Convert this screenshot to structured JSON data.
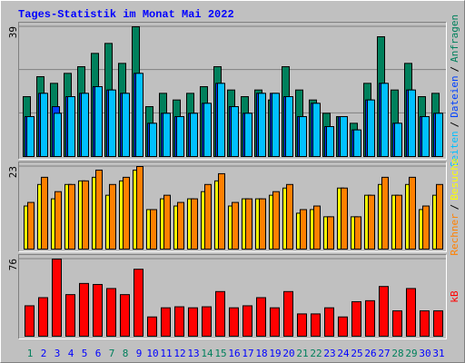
{
  "chart_data": [
    {
      "type": "bar",
      "title": "Tages-Statistik im Monat Mai 2022",
      "ylim": [
        0,
        39
      ],
      "yticks": [
        39
      ],
      "legend_separator": "/",
      "series": [
        {
          "name": "Anfragen",
          "color": "#00805c",
          "values": [
            18,
            24,
            22,
            25,
            27,
            31,
            34,
            28,
            39,
            15,
            19,
            17,
            19,
            21,
            27,
            20,
            18,
            20,
            17,
            27,
            20,
            17,
            13,
            12,
            10,
            22,
            36,
            20,
            28,
            18,
            19
          ]
        },
        {
          "name": "Dateien",
          "color": "#0040ff",
          "values": [
            12,
            19,
            15,
            18,
            19,
            21,
            20,
            19,
            25,
            10,
            13,
            12,
            13,
            16,
            22,
            15,
            13,
            19,
            19,
            18,
            12,
            16,
            9,
            12,
            8,
            17,
            22,
            10,
            20,
            12,
            13
          ]
        },
        {
          "name": "Seiten",
          "color": "#00c0ff",
          "values": [
            12,
            19,
            13,
            18,
            19,
            21,
            20,
            19,
            25,
            10,
            13,
            12,
            13,
            16,
            22,
            15,
            13,
            19,
            19,
            18,
            12,
            16,
            9,
            12,
            8,
            17,
            22,
            10,
            20,
            12,
            13
          ]
        }
      ]
    },
    {
      "type": "bar",
      "ylim": [
        0,
        23
      ],
      "yticks": [
        23
      ],
      "legend_separator": "/",
      "series": [
        {
          "name": "Besuche",
          "color": "#ffff00",
          "values": [
            12,
            18,
            14,
            18,
            19,
            20,
            15,
            19,
            22,
            11,
            14,
            12,
            14,
            16,
            19,
            12,
            14,
            14,
            15,
            17,
            10,
            11,
            9,
            17,
            9,
            15,
            18,
            15,
            18,
            11,
            15
          ]
        },
        {
          "name": "Rechner",
          "color": "#ff8000",
          "values": [
            13,
            20,
            16,
            18,
            19,
            22,
            18,
            20,
            23,
            11,
            15,
            13,
            14,
            18,
            21,
            13,
            14,
            14,
            16,
            18,
            11,
            12,
            9,
            17,
            9,
            15,
            20,
            15,
            20,
            12,
            18
          ]
        }
      ]
    },
    {
      "type": "bar",
      "ylim": [
        0,
        76
      ],
      "yticks": [
        76
      ],
      "categories": [
        "1",
        "2",
        "3",
        "4",
        "5",
        "6",
        "7",
        "8",
        "9",
        "10",
        "11",
        "12",
        "13",
        "14",
        "15",
        "16",
        "17",
        "18",
        "19",
        "20",
        "21",
        "22",
        "23",
        "24",
        "25",
        "26",
        "27",
        "28",
        "29",
        "30",
        "31"
      ],
      "category_colors": [
        "#00805c",
        "#0000ff",
        "#0000ff",
        "#0000ff",
        "#0000ff",
        "#0000ff",
        "#00805c",
        "#00805c",
        "#0000ff",
        "#0000ff",
        "#0000ff",
        "#0000ff",
        "#0000ff",
        "#00805c",
        "#00805c",
        "#0000ff",
        "#0000ff",
        "#0000ff",
        "#0000ff",
        "#0000ff",
        "#00805c",
        "#00805c",
        "#0000ff",
        "#0000ff",
        "#0000ff",
        "#0000ff",
        "#0000ff",
        "#00805c",
        "#00805c",
        "#0000ff",
        "#0000ff"
      ],
      "series": [
        {
          "name": "kB",
          "color": "#ff0000",
          "values": [
            30,
            38,
            76,
            41,
            52,
            51,
            47,
            41,
            66,
            19,
            28,
            29,
            28,
            29,
            44,
            28,
            30,
            38,
            28,
            44,
            22,
            22,
            28,
            19,
            34,
            35,
            49,
            25,
            47,
            25,
            25
          ]
        }
      ]
    }
  ]
}
